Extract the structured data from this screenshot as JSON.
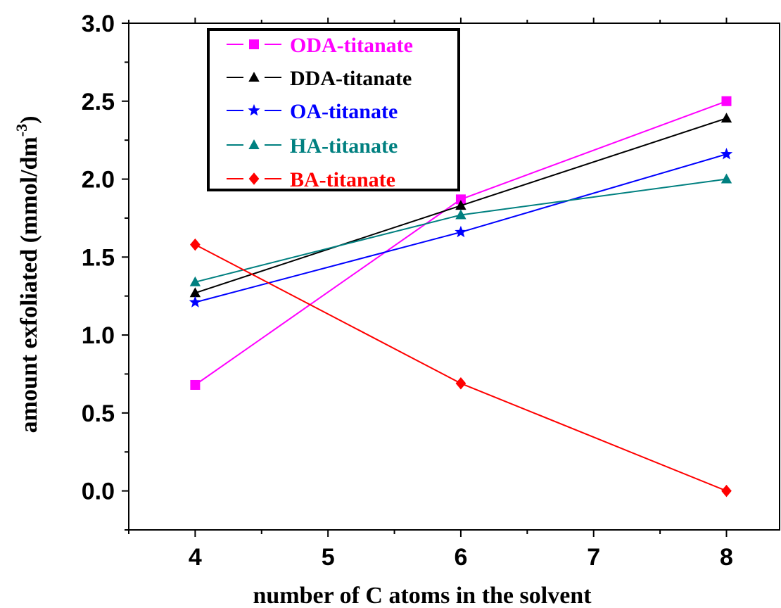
{
  "chart_data": {
    "type": "line",
    "xlabel": "number of C atoms in the solvent",
    "ylabel": "amount exfoliated (mmol/dm",
    "ylabel_sup": "-3",
    "ylabel_close": ")",
    "xlim": [
      3.5,
      8.4
    ],
    "ylim": [
      -0.25,
      3.0
    ],
    "xticks": [
      4,
      5,
      6,
      7,
      8
    ],
    "xtick_labels": [
      "4",
      "5",
      "6",
      "7",
      "8"
    ],
    "yticks": [
      0.0,
      0.5,
      1.0,
      1.5,
      2.0,
      2.5,
      3.0
    ],
    "ytick_labels": [
      "0.0",
      "0.5",
      "1.0",
      "1.5",
      "2.0",
      "2.5",
      "3.0"
    ],
    "x": [
      4,
      6,
      8
    ],
    "grid": false,
    "legend_position": "top-left",
    "series": [
      {
        "name": "ODA-titanate",
        "values": [
          0.68,
          1.87,
          2.5
        ],
        "color": "#ff00ff",
        "marker": "square"
      },
      {
        "name": "DDA-titanate",
        "values": [
          1.27,
          1.83,
          2.39
        ],
        "color": "#000000",
        "marker": "triangle"
      },
      {
        "name": "OA-titanate",
        "values": [
          1.21,
          1.66,
          2.16
        ],
        "color": "#0000ff",
        "marker": "star"
      },
      {
        "name": "HA-titanate",
        "values": [
          1.34,
          1.77,
          2.0
        ],
        "color": "#008080",
        "marker": "triangle"
      },
      {
        "name": "BA-titanate",
        "values": [
          1.58,
          0.69,
          0.0
        ],
        "color": "#ff0000",
        "marker": "diamond"
      }
    ]
  }
}
